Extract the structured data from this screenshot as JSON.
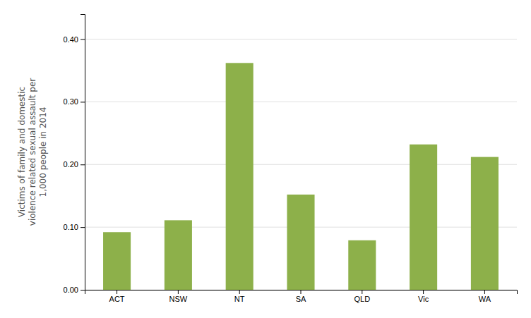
{
  "chart_data": {
    "type": "bar",
    "categories": [
      "ACT",
      "NSW",
      "NT",
      "SA",
      "QLD",
      "Vic",
      "WA"
    ],
    "values": [
      0.092,
      0.111,
      0.362,
      0.152,
      0.079,
      0.232,
      0.212
    ],
    "color": "#8db04a",
    "y_label": "Victims of family and domestic\nviolence related sexual assault per\n1,000 people in 2014",
    "ylim": [
      0,
      0.44
    ],
    "yticks": [
      {
        "value": 0.0,
        "label": "0.00"
      },
      {
        "value": 0.1,
        "label": "0.10"
      },
      {
        "value": 0.2,
        "label": "0.20"
      },
      {
        "value": 0.3,
        "label": "0.30"
      },
      {
        "value": 0.4,
        "label": "0.40"
      }
    ],
    "grid": true
  }
}
